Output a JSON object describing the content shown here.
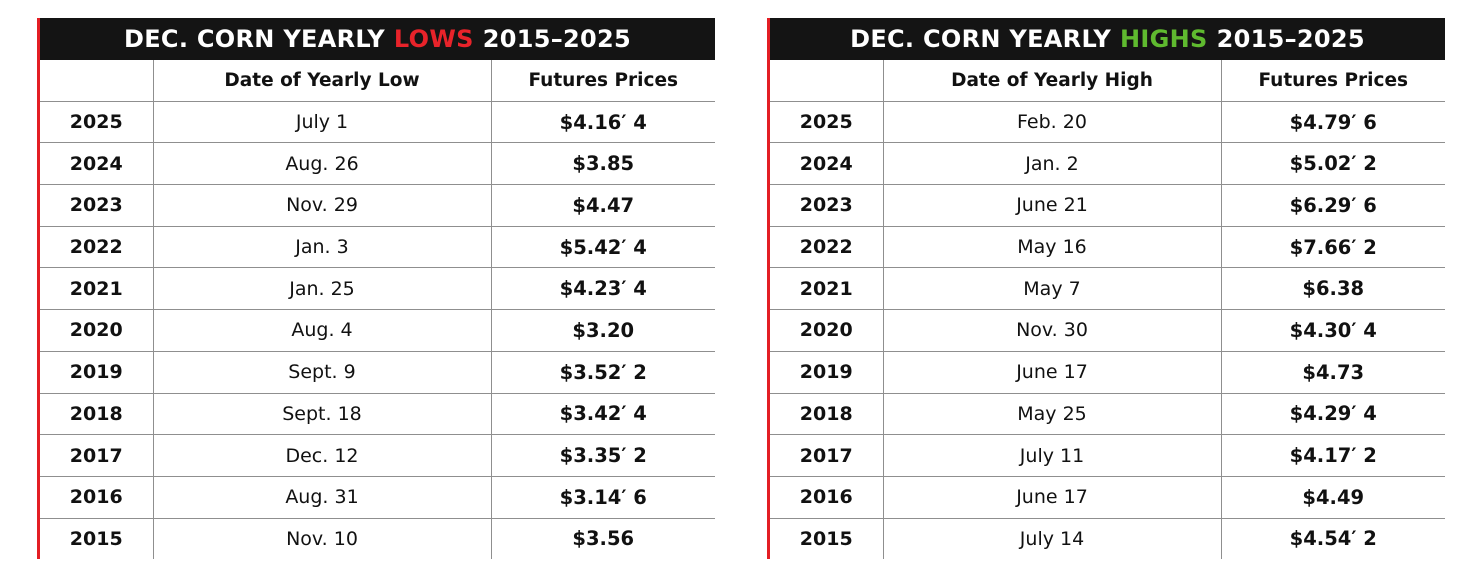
{
  "tables": [
    {
      "title": {
        "lead": "DEC. CORN YEARLY",
        "highlight": "LOWS",
        "tail": "2015–2025"
      },
      "columns": [
        "Date of Yearly Low",
        "Futures Prices"
      ],
      "rows": [
        [
          "2025",
          "July 1",
          "$4.16′ 4"
        ],
        [
          "2024",
          "Aug. 26",
          "$3.85"
        ],
        [
          "2023",
          "Nov. 29",
          "$4.47"
        ],
        [
          "2022",
          "Jan. 3",
          "$5.42′ 4"
        ],
        [
          "2021",
          "Jan. 25",
          "$4.23′ 4"
        ],
        [
          "2020",
          "Aug. 4",
          "$3.20"
        ],
        [
          "2019",
          "Sept. 9",
          "$3.52′ 2"
        ],
        [
          "2018",
          "Sept. 18",
          "$3.42′ 4"
        ],
        [
          "2017",
          "Dec. 12",
          "$3.35′ 2"
        ],
        [
          "2016",
          "Aug. 31",
          "$3.14′ 6"
        ],
        [
          "2015",
          "Nov. 10",
          "$3.56"
        ]
      ]
    },
    {
      "title": {
        "lead": "DEC. CORN YEARLY",
        "highlight": "HIGHS",
        "tail": "2015–2025"
      },
      "columns": [
        "Date of Yearly High",
        "Futures Prices"
      ],
      "rows": [
        [
          "2025",
          "Feb. 20",
          "$4.79′ 6"
        ],
        [
          "2024",
          "Jan. 2",
          "$5.02′ 2"
        ],
        [
          "2023",
          "June 21",
          "$6.29′ 6"
        ],
        [
          "2022",
          "May 16",
          "$7.66′ 2"
        ],
        [
          "2021",
          "May 7",
          "$6.38"
        ],
        [
          "2020",
          "Nov. 30",
          "$4.30′ 4"
        ],
        [
          "2019",
          "June 17",
          "$4.73"
        ],
        [
          "2018",
          "May 25",
          "$4.29′ 4"
        ],
        [
          "2017",
          "July 11",
          "$4.17′ 2"
        ],
        [
          "2016",
          "June 17",
          "$4.49"
        ],
        [
          "2015",
          "July 14",
          "$4.54′ 2"
        ]
      ]
    }
  ]
}
